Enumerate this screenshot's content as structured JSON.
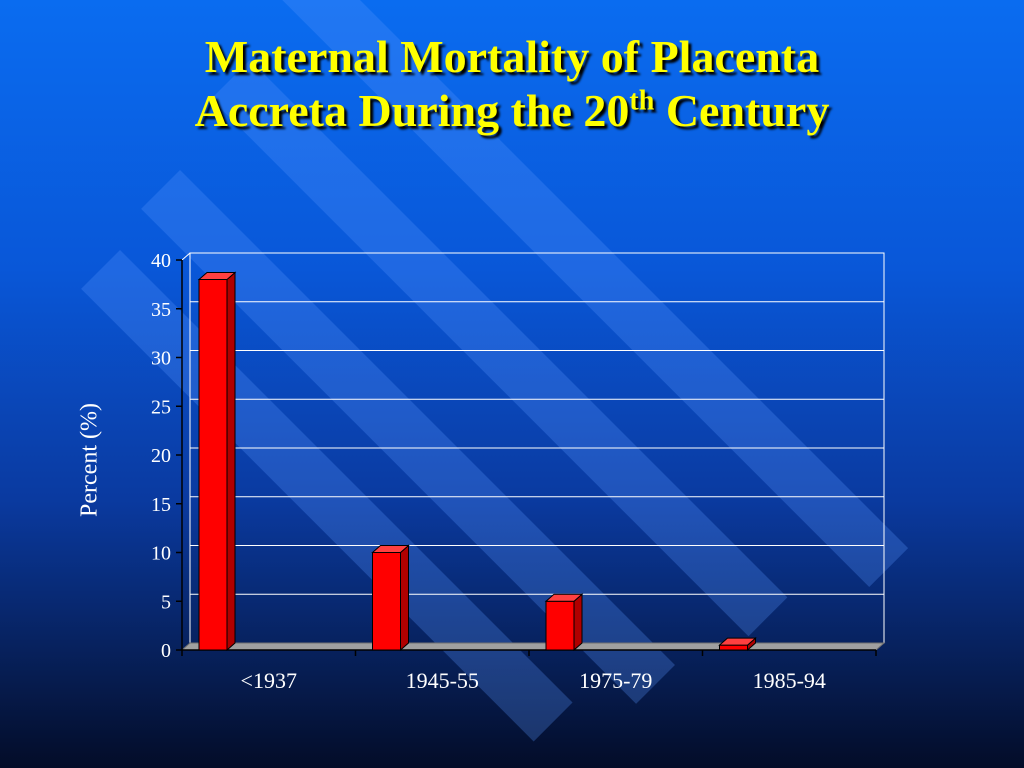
{
  "slide": {
    "title_line1": "Maternal Mortality of Placenta",
    "title_line2_main": "Accreta During the 20",
    "title_line2_sup": "th",
    "title_line2_end": "Century"
  },
  "colors": {
    "title": "#ffff00",
    "bar_front": "#ff0000",
    "bar_side": "#b00000",
    "bar_top": "#ff4040",
    "text": "#ffffff",
    "gridline": "#ffffff",
    "floor": "#a0a0a0"
  },
  "chart_data": {
    "type": "bar",
    "categories": [
      "<1937",
      "1945-55",
      "1975-79",
      "1985-94"
    ],
    "values": [
      38,
      10,
      5,
      0.5
    ],
    "xlabel": "",
    "ylabel": "Percent (%)",
    "ylim": [
      0,
      40
    ],
    "yticks": [
      0,
      5,
      10,
      15,
      20,
      25,
      30,
      35,
      40
    ],
    "grid": true,
    "legend": "none"
  }
}
